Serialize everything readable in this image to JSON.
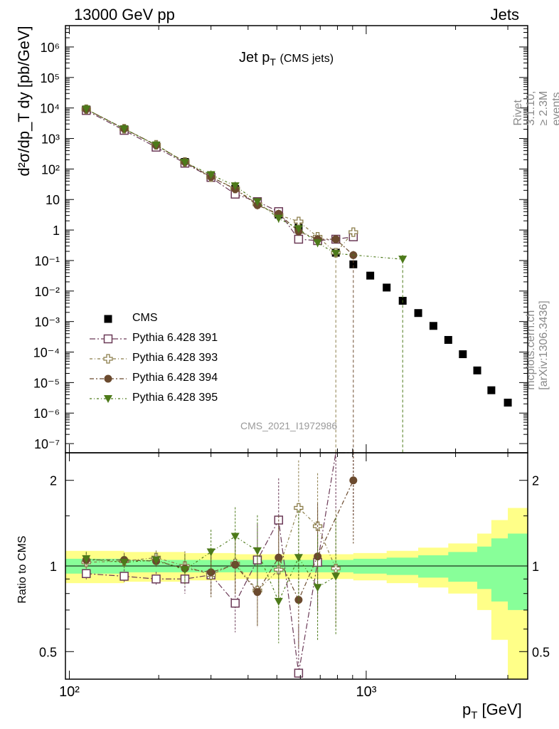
{
  "header": {
    "left": "13000 GeV pp",
    "right": "Jets"
  },
  "title": {
    "main": "Jet p",
    "sub": "T",
    "suffix": "(CMS jets)"
  },
  "reference": "CMS_2021_I1972986",
  "side_labels": {
    "rivet": "Rivet 3.1.10, ≥ 2.3M events",
    "mcplots": "mcplots.cern.ch [arXiv:1306.3436]"
  },
  "axes": {
    "x_label": "p",
    "x_label_sub": "T",
    "x_label_unit": " [GeV]",
    "y_label_main": "d²σ/dp_T dy [pb/GeV]",
    "y_label_ratio": "Ratio to CMS"
  },
  "legend": [
    {
      "name": "CMS",
      "color": "#000000",
      "marker": "filled-square"
    },
    {
      "name": "Pythia 6.428 391",
      "color": "#6b3a57",
      "marker": "open-square"
    },
    {
      "name": "Pythia 6.428 393",
      "color": "#8b7d4a",
      "marker": "open-cross"
    },
    {
      "name": "Pythia 6.428 394",
      "color": "#6b4a2e",
      "marker": "filled-circle"
    },
    {
      "name": "Pythia 6.428 395",
      "color": "#4d7a1a",
      "marker": "filled-triangle-down"
    }
  ],
  "chart_data": [
    {
      "type": "scatter",
      "title": "Jet pT (CMS jets)",
      "xlabel": "pT [GeV]",
      "ylabel": "d²σ/dpT dy [pb/GeV]",
      "xscale": "log",
      "yscale": "log",
      "xlim": [
        97,
        3500
      ],
      "ylim": [
        5e-08,
        5000000.0
      ],
      "x_ticks": [
        "10²",
        "10³"
      ],
      "y_ticks": [
        "10⁻⁷",
        "10⁻⁶",
        "10⁻⁵",
        "10⁻⁴",
        "10⁻³",
        "10⁻²",
        "10⁻¹",
        "1",
        "10",
        "10²",
        "10³",
        "10⁴",
        "10⁵",
        "10⁶"
      ],
      "legend_position": "lower-left",
      "series": [
        {
          "name": "CMS",
          "x": [
            114,
            153,
            196,
            245,
            300,
            362,
            430,
            507,
            592,
            686,
            790,
            905,
            1032,
            1172,
            1327,
            1497,
            1684,
            1890,
            2116,
            2366,
            2640,
            3000
          ],
          "y": [
            8900,
            2000,
            580,
            170,
            58,
            22,
            8,
            3.2,
            1.2,
            0.45,
            0.18,
            0.075,
            0.032,
            0.013,
            0.0048,
            0.0019,
            0.00072,
            0.00025,
            8.5e-05,
            2.5e-05,
            5.6e-06,
            2.2e-06
          ]
        },
        {
          "name": "Pythia 6.428 391",
          "x": [
            114,
            153,
            196,
            245,
            300,
            362,
            430,
            507,
            592,
            686,
            790,
            905
          ],
          "y": [
            8300,
            1850,
            520,
            155,
            53,
            15,
            8.5,
            4,
            0.5,
            0.45,
            0.5,
            0.6
          ]
        },
        {
          "name": "Pythia 6.428 393",
          "x": [
            114,
            153,
            196,
            245,
            300,
            362,
            430,
            507,
            592,
            686,
            790,
            905
          ],
          "y": [
            9100,
            2080,
            620,
            170,
            54,
            23,
            7,
            3.1,
            1.9,
            0.6,
            0.18,
            0.85
          ]
        },
        {
          "name": "Pythia 6.428 394",
          "x": [
            114,
            153,
            196,
            245,
            300,
            362,
            430,
            507,
            592,
            686,
            790,
            905
          ],
          "y": [
            9100,
            2100,
            600,
            170,
            55,
            22,
            6.5,
            3.4,
            0.9,
            0.5,
            0.5,
            0.15
          ]
        },
        {
          "name": "Pythia 6.428 395",
          "x": [
            114,
            153,
            196,
            245,
            300,
            362,
            430,
            507,
            592,
            686,
            790,
            1327
          ],
          "y": [
            9200,
            2050,
            610,
            165,
            65,
            28,
            8.4,
            2.4,
            1.1,
            0.38,
            0.17,
            0.11
          ]
        }
      ]
    },
    {
      "type": "scatter",
      "ylabel": "Ratio to CMS",
      "xscale": "log",
      "yscale": "log",
      "xlim": [
        97,
        3500
      ],
      "ylim": [
        0.4,
        2.5
      ],
      "y_ticks": [
        "0.5",
        "1",
        "2"
      ],
      "band_x": [
        97,
        153,
        245,
        362,
        507,
        686,
        905,
        1172,
        1497,
        1890,
        2366,
        2640,
        3000,
        3500
      ],
      "band_yellow": [
        0.13,
        0.12,
        0.11,
        0.1,
        0.1,
        0.1,
        0.11,
        0.13,
        0.16,
        0.2,
        0.3,
        0.45,
        0.6,
        0.6
      ],
      "band_green": [
        0.06,
        0.05,
        0.05,
        0.05,
        0.05,
        0.05,
        0.06,
        0.07,
        0.09,
        0.12,
        0.17,
        0.25,
        0.3,
        0.3
      ],
      "series": [
        {
          "name": "Pythia 6.428 391",
          "x": [
            114,
            153,
            196,
            245,
            300,
            362,
            430,
            507,
            592,
            686,
            790,
            905
          ],
          "y": [
            0.94,
            0.92,
            0.9,
            0.9,
            0.93,
            0.74,
            1.05,
            1.45,
            0.42,
            1.03,
            2.5,
            2.5
          ]
        },
        {
          "name": "Pythia 6.428 393",
          "x": [
            114,
            153,
            196,
            245,
            300,
            362,
            430,
            507,
            592,
            686,
            790
          ],
          "y": [
            1.03,
            1.04,
            1.07,
            1.0,
            0.93,
            1.02,
            0.82,
            0.97,
            1.6,
            1.38,
            0.98
          ]
        },
        {
          "name": "Pythia 6.428 394",
          "x": [
            114,
            153,
            196,
            245,
            300,
            362,
            430,
            507,
            592,
            686,
            905
          ],
          "y": [
            1.05,
            1.05,
            1.04,
            0.98,
            0.95,
            1.01,
            0.81,
            1.07,
            0.76,
            1.08,
            2.0
          ]
        },
        {
          "name": "Pythia 6.428 395",
          "x": [
            114,
            153,
            196,
            245,
            300,
            362,
            430,
            507,
            592,
            686,
            790
          ],
          "y": [
            1.06,
            1.03,
            1.05,
            0.97,
            1.12,
            1.27,
            1.13,
            0.75,
            1.07,
            0.84,
            0.92
          ]
        }
      ]
    }
  ]
}
